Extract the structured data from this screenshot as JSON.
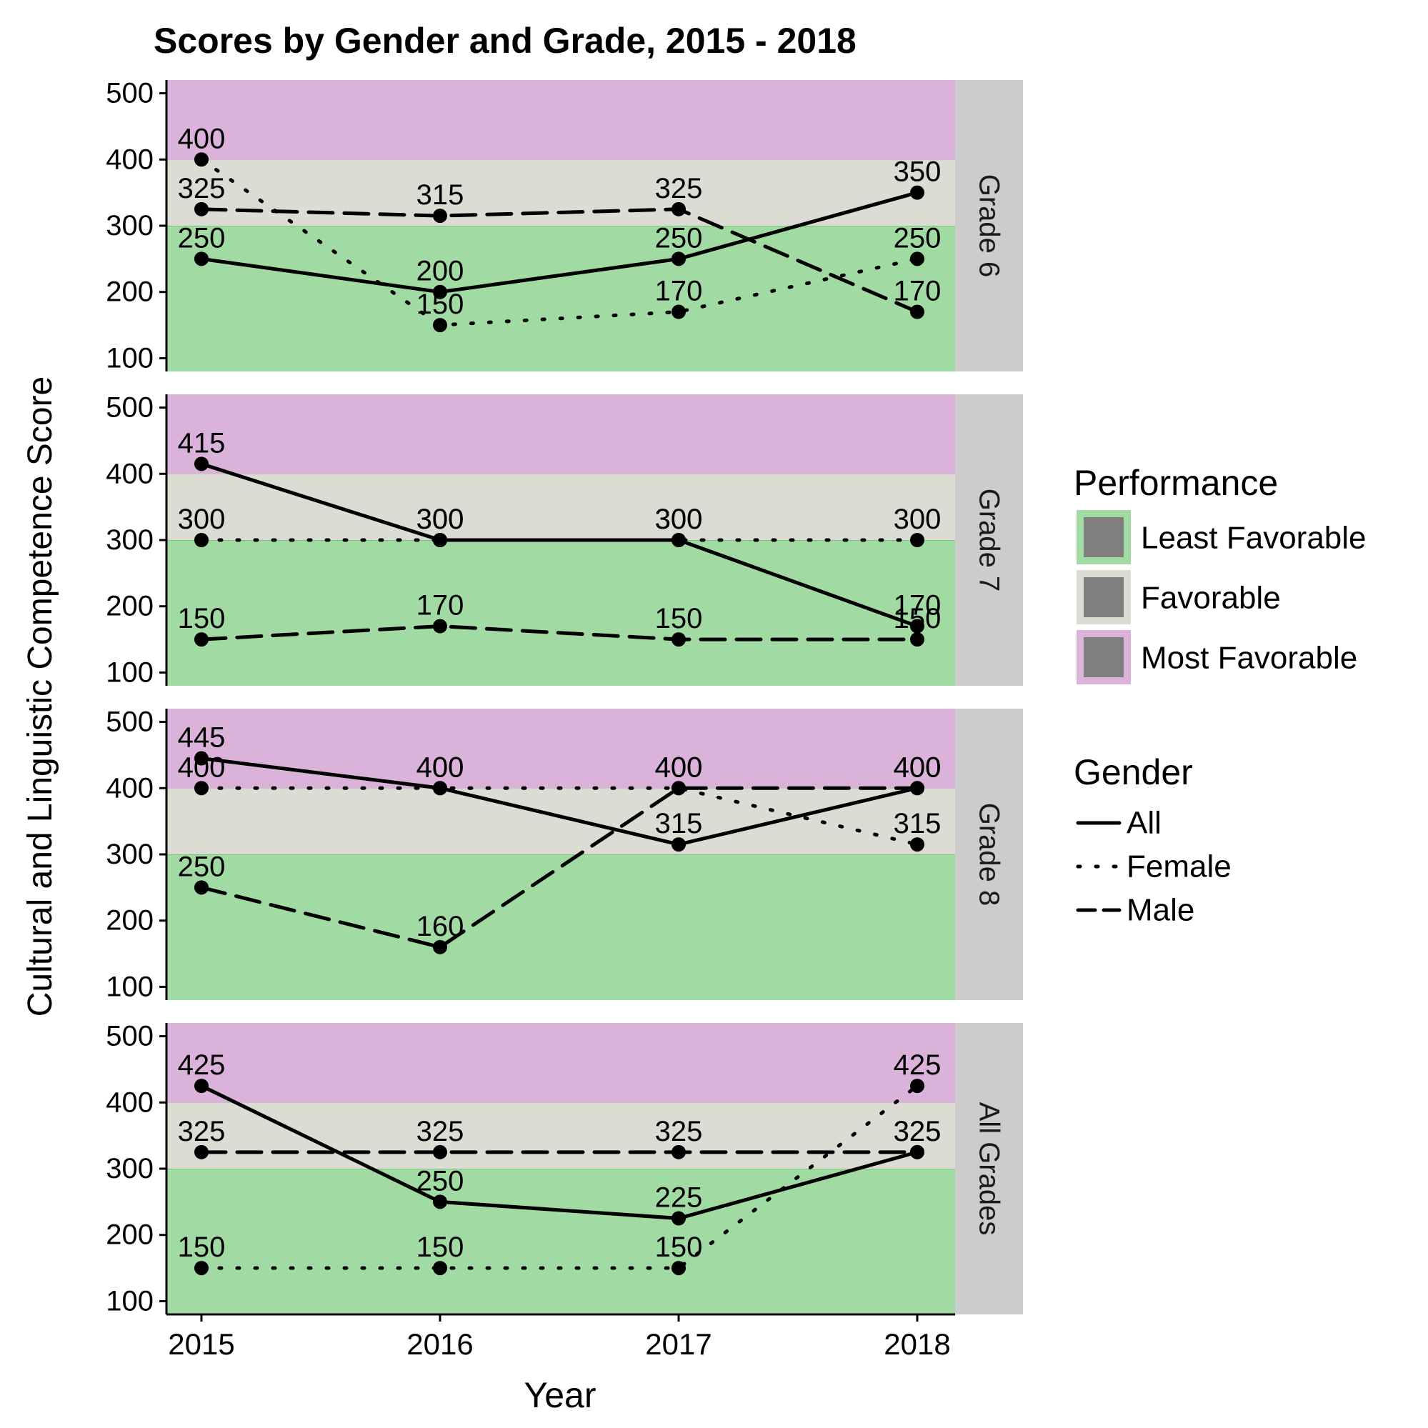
{
  "chart_data": {
    "type": "line",
    "title": "Scores by Gender and Grade, 2015 - 2018",
    "xlabel": "Year",
    "ylabel": "Cultural and Linguistic Competence Score",
    "x": [
      "2015",
      "2016",
      "2017",
      "2018"
    ],
    "yticks": [
      100,
      200,
      300,
      400,
      500
    ],
    "ylim": [
      80,
      520
    ],
    "bands": [
      {
        "name": "Least Favorable",
        "from": 80,
        "to": 300,
        "color": "#a1dba3",
        "border": "#74c476"
      },
      {
        "name": "Favorable",
        "from": 300,
        "to": 400,
        "color": "#dcdcd4",
        "border": "#cacac2"
      },
      {
        "name": "Most Favorable",
        "from": 400,
        "to": 520,
        "color": "#dab2da",
        "border": "#c98fc9"
      }
    ],
    "legend": {
      "performance_title": "Performance",
      "gender_title": "Gender",
      "placement": "right"
    },
    "series_styles": [
      {
        "name": "All",
        "dash": "none"
      },
      {
        "name": "Female",
        "dash": "dotted"
      },
      {
        "name": "Male",
        "dash": "dashed"
      }
    ],
    "panels": [
      {
        "strip": "Grade 6",
        "series": [
          {
            "name": "All",
            "values": [
              250,
              200,
              250,
              350
            ]
          },
          {
            "name": "Female",
            "values": [
              400,
              150,
              170,
              250
            ]
          },
          {
            "name": "Male",
            "values": [
              325,
              315,
              325,
              170
            ]
          }
        ]
      },
      {
        "strip": "Grade 7",
        "series": [
          {
            "name": "All",
            "values": [
              415,
              300,
              300,
              170
            ]
          },
          {
            "name": "Female",
            "values": [
              300,
              300,
              300,
              300
            ]
          },
          {
            "name": "Male",
            "values": [
              150,
              170,
              150,
              150
            ]
          }
        ]
      },
      {
        "strip": "Grade 8",
        "series": [
          {
            "name": "All",
            "values": [
              445,
              400,
              315,
              400
            ]
          },
          {
            "name": "Female",
            "values": [
              400,
              400,
              400,
              315
            ]
          },
          {
            "name": "Male",
            "values": [
              250,
              160,
              400,
              400
            ]
          }
        ]
      },
      {
        "strip": "All Grades",
        "series": [
          {
            "name": "All",
            "values": [
              425,
              250,
              225,
              325
            ]
          },
          {
            "name": "Female",
            "values": [
              150,
              150,
              150,
              425
            ]
          },
          {
            "name": "Male",
            "values": [
              325,
              325,
              325,
              325
            ]
          }
        ]
      }
    ]
  }
}
